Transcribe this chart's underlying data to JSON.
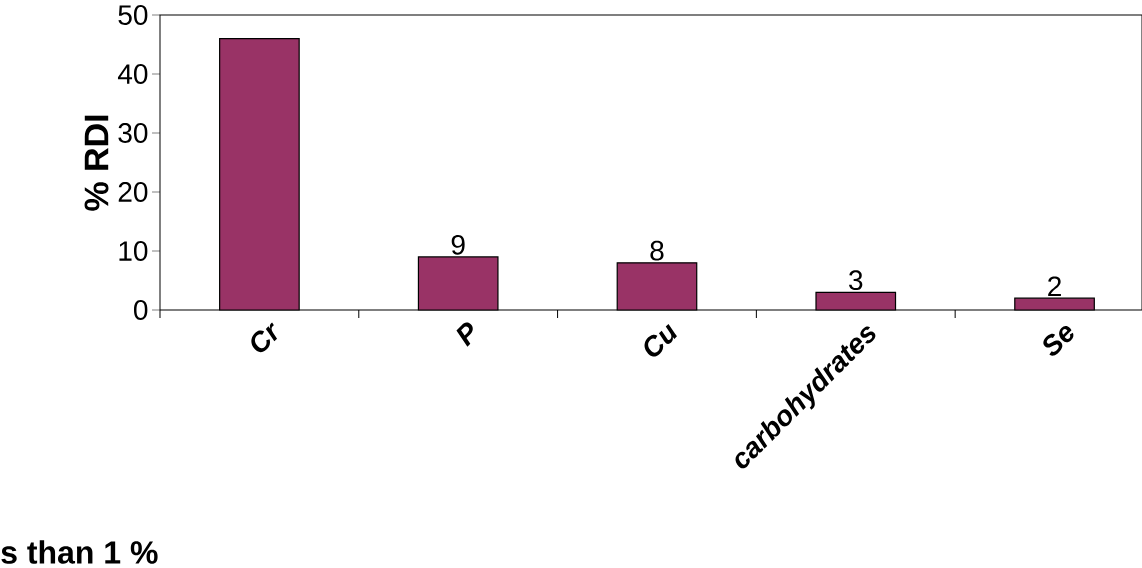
{
  "chart_data": {
    "type": "bar",
    "ylabel": "% RDI",
    "categories": [
      "Cr",
      "P",
      "Cu",
      "carbohydrates",
      "Se"
    ],
    "values": [
      46,
      9,
      8,
      3,
      2
    ],
    "color": "#993366",
    "value_labels": [
      null,
      "9",
      "8",
      "3",
      "2"
    ],
    "ylim": [
      0,
      50
    ],
    "yticks": [
      0,
      10,
      20,
      30,
      40,
      50
    ],
    "annotations": [
      "s than 1 %"
    ]
  }
}
